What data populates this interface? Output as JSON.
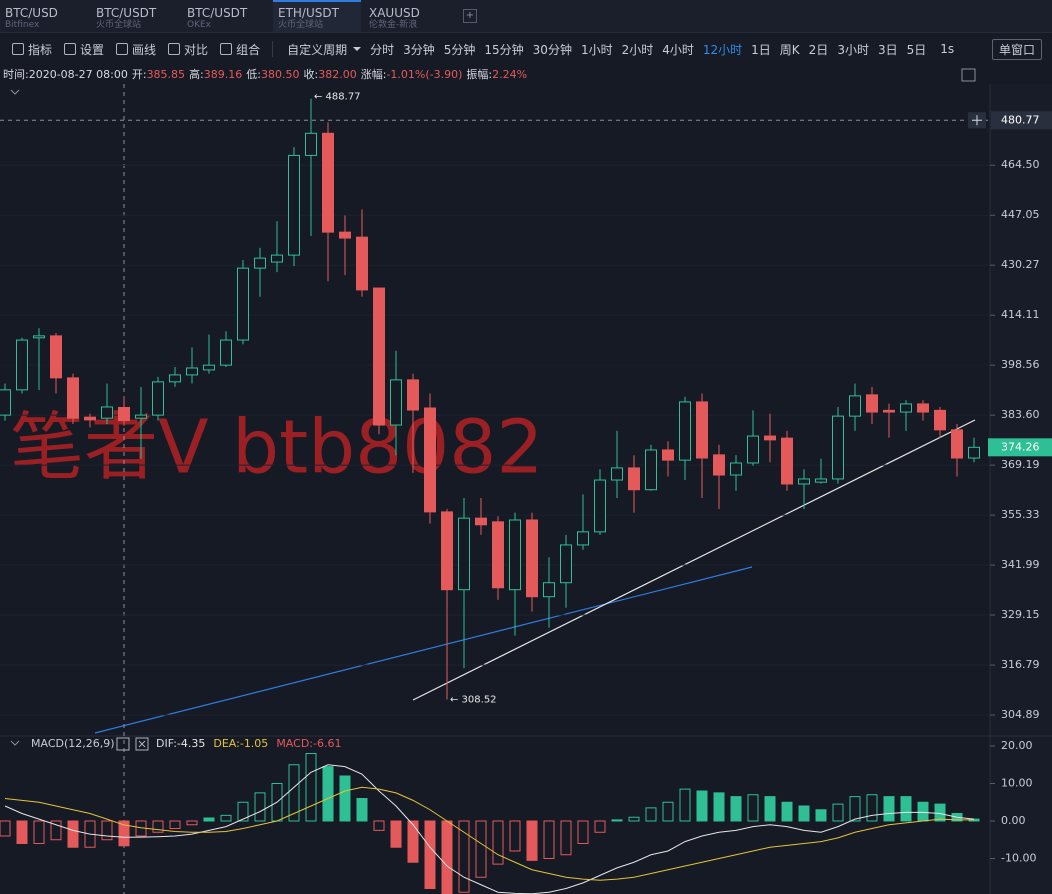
{
  "tabs": [
    {
      "title": "BTC/USD",
      "sub": "Bitfinex"
    },
    {
      "title": "BTC/USDT",
      "sub": "火币全球站"
    },
    {
      "title": "BTC/USDT",
      "sub": "OKEx"
    },
    {
      "title": "ETH/USDT",
      "sub": "火币全球站"
    },
    {
      "title": "XAUUSD",
      "sub": "伦敦金-新浪"
    }
  ],
  "add_tab": "+",
  "tools": [
    "指标",
    "设置",
    "画线",
    "对比",
    "组合"
  ],
  "period_menu": "自定义周期",
  "periods": [
    "分时",
    "3分钟",
    "5分钟",
    "15分钟",
    "30分钟",
    "1小时",
    "2小时",
    "4小时",
    "12小时",
    "1日",
    "周K",
    "2日",
    "3小时",
    "3日",
    "5日"
  ],
  "active_period": "12小时",
  "speed": "1s",
  "window_mode": "单窗口",
  "info": [
    {
      "label": "时间:",
      "value": "2020-08-27 08:00"
    },
    {
      "label": "开:",
      "value": "385.85"
    },
    {
      "label": "高:",
      "value": "389.16"
    },
    {
      "label": "低:",
      "value": "380.50"
    },
    {
      "label": "收:",
      "value": "382.00"
    },
    {
      "label": "涨幅:",
      "value": "-1.01%(-3.90)"
    },
    {
      "label": "振幅:",
      "value": "2.24%"
    }
  ],
  "watermark": "笔者V  btb8082",
  "chart_data": [
    {
      "type": "candlestick",
      "log": true,
      "up_color": "#2fbf94",
      "down_color": "#e45a5a",
      "ylim": [
        300.26,
        493.93
      ],
      "yticks": [
        {
          "value": 464.5,
          "label": "464.50"
        },
        447.05,
        430.27,
        414.11,
        398.56,
        {
          "value": 383.6,
          "label": "383.60"
        },
        369.19,
        355.33,
        341.99,
        329.15,
        316.79,
        304.89
      ],
      "crosshair_price": 480.77,
      "high_annotation": "← 488.77",
      "low_annotation": "← 308.52",
      "open": [
        383.6,
        391.1,
        407,
        407.6,
        394.7,
        383.0,
        382.7,
        385.85,
        382.7,
        383.6,
        393.5,
        395.6,
        397.1,
        398.56,
        406.3,
        429.3,
        431.3,
        433.6,
        468,
        476,
        441.3,
        439.6,
        422.8,
        380.7,
        394.1,
        385.7,
        356.2,
        335.6,
        354.5,
        353.5,
        335.6,
        354.0,
        333.8,
        337.4,
        347.3,
        350.8,
        365,
        368.4,
        362.3,
        373.5,
        370.6,
        387.5,
        372.1,
        366.4,
        369.8,
        377.5,
        376.9,
        363.9,
        364.4,
        365.3,
        383.3,
        389.6,
        385.0,
        384.5,
        386.9,
        385.0,
        379.3,
        371.2
      ],
      "high": [
        393,
        407,
        410,
        408.5,
        396,
        384,
        393,
        389.16,
        392,
        395,
        398,
        404,
        408,
        409,
        432,
        436,
        445,
        471,
        488.77,
        480,
        447,
        449,
        423,
        403,
        396,
        390,
        357,
        360,
        360,
        355,
        356,
        356,
        344,
        350,
        361,
        368,
        379,
        372,
        375,
        376,
        389,
        390,
        375,
        372,
        385,
        384,
        379,
        368,
        371,
        386,
        393,
        392,
        387,
        388,
        388,
        386,
        381,
        377
      ],
      "low": [
        382,
        390,
        391,
        390,
        381,
        380,
        381,
        380.5,
        371,
        382,
        392,
        393,
        396,
        398,
        405,
        420,
        428,
        430,
        440,
        425,
        427,
        420,
        378,
        372,
        367,
        353,
        308.52,
        316,
        350,
        333,
        324,
        330,
        326,
        331,
        346,
        350,
        360,
        356,
        362,
        366,
        365,
        360,
        357,
        362,
        369,
        370,
        362,
        357,
        364,
        364,
        379,
        381,
        377,
        379,
        382,
        377,
        366,
        370
      ],
      "close": [
        391.1,
        406.3,
        407.6,
        394.7,
        382.7,
        382.2,
        386,
        382.0,
        383.6,
        393.5,
        395.6,
        397.7,
        398.56,
        406.3,
        429.3,
        432.6,
        433.6,
        468,
        476,
        441.3,
        439.3,
        422.2,
        380.7,
        394.1,
        385.1,
        356.2,
        335.6,
        354.5,
        352.7,
        336.1,
        354.0,
        333.8,
        337.4,
        347.3,
        350.8,
        365,
        368.4,
        362.3,
        373.5,
        370.6,
        387.5,
        371.2,
        366.4,
        369.8,
        377.5,
        376.4,
        363.9,
        365.3,
        365.3,
        383.3,
        389.3,
        384.5,
        384.5,
        386.9,
        384.5,
        379.3,
        371.2,
        374.26
      ]
    },
    {
      "type": "macd",
      "title": "MACD(12,26,9)",
      "ylim": [
        -19.47,
        22.4
      ],
      "yticks": [
        {
          "value": 20,
          "label": "20.00"
        },
        {
          "value": 10,
          "label": "10.00"
        },
        {
          "value": 0,
          "label": "0.00"
        },
        {
          "value": -10,
          "label": "-10.00"
        }
      ],
      "up_color": "#2fbf94",
      "down_color": "#e45a5a",
      "series": [
        {
          "name": "DIF:",
          "color": "#e6e6e6",
          "values": [
            4,
            2,
            0.5,
            -1,
            -2.5,
            -3.5,
            -4,
            -4.35,
            -4.3,
            -4.2,
            -4,
            -3.5,
            -2.5,
            -1.5,
            0.5,
            2.5,
            5,
            9,
            13,
            15,
            14.5,
            12.5,
            8,
            4,
            -1,
            -7,
            -12,
            -15,
            -17,
            -19,
            -19.3,
            -19.4,
            -19,
            -18,
            -16.5,
            -14.5,
            -12.5,
            -11,
            -9,
            -8,
            -5.5,
            -4,
            -3,
            -2.5,
            -1.5,
            -1,
            -1.5,
            -2.5,
            -3,
            -1.5,
            0.5,
            1.5,
            2,
            2.3,
            2.3,
            2,
            1,
            0.5
          ]
        },
        {
          "name": "DEA:",
          "color": "#e5c33a",
          "values": [
            6,
            5.5,
            5,
            4,
            3,
            2,
            0.5,
            -1.05,
            -1.8,
            -2.3,
            -2.8,
            -3,
            -3,
            -2.8,
            -2,
            -1,
            0,
            2,
            4,
            6,
            8,
            9,
            8.5,
            7.5,
            5.5,
            3,
            0,
            -3,
            -6,
            -9,
            -11,
            -13,
            -14,
            -15,
            -15.5,
            -15.8,
            -15.5,
            -15,
            -14,
            -13,
            -12,
            -11,
            -10,
            -9,
            -8,
            -7,
            -6.5,
            -6,
            -5.5,
            -4.5,
            -3,
            -2,
            -1,
            -0.5,
            0,
            0.5,
            0.3,
            0.3
          ]
        },
        {
          "name": "MACD:",
          "color": "#e45a5a",
          "values": [
            -4,
            -6,
            -6,
            -5,
            -7,
            -7,
            -5,
            -6.61,
            -4,
            -3,
            -2,
            -1,
            0.8,
            1.5,
            5,
            7.5,
            10,
            15,
            18,
            14.5,
            12,
            6,
            -2.5,
            -7,
            -11,
            -18,
            -20,
            -19,
            -15,
            -11.5,
            -8,
            -10.5,
            -10,
            -9,
            -6,
            -3,
            0.3,
            1,
            3.5,
            5,
            8.5,
            8,
            7.5,
            6.5,
            7,
            6.5,
            5,
            4,
            3,
            4.5,
            6.5,
            7,
            6.5,
            6.5,
            5,
            4.5,
            2,
            0.5
          ]
        }
      ]
    }
  ]
}
